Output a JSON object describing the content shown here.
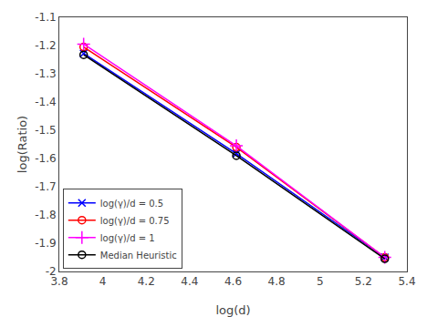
{
  "chart_data": {
    "type": "line",
    "xlabel": "log(d)",
    "ylabel": "log(Ratio)",
    "xlim": [
      3.8,
      5.4
    ],
    "ylim": [
      -2.0,
      -1.1
    ],
    "xticks": [
      3.8,
      4,
      4.2,
      4.4,
      4.6,
      4.8,
      5,
      5.2,
      5.4
    ],
    "yticks": [
      -2,
      -1.9,
      -1.8,
      -1.7,
      -1.6,
      -1.5,
      -1.4,
      -1.3,
      -1.2,
      -1.1
    ],
    "grid": false,
    "legend": "lower left",
    "series": [
      {
        "name": "log(γ)/d = 0.5",
        "color": "blue",
        "marker": "x",
        "x": [
          3.912,
          4.615,
          5.298
        ],
        "values": [
          -1.228,
          -1.583,
          -1.95
        ]
      },
      {
        "name": "log(γ)/d = 0.75",
        "color": "red",
        "marker": "circle-open",
        "x": [
          3.912,
          4.615,
          5.298
        ],
        "values": [
          -1.205,
          -1.56,
          -1.95
        ]
      },
      {
        "name": "log(γ)/d = 1",
        "color": "magenta",
        "marker": "plus",
        "x": [
          3.912,
          4.615,
          5.298
        ],
        "values": [
          -1.195,
          -1.555,
          -1.95
        ]
      },
      {
        "name": "Median Heuristic",
        "color": "black",
        "marker": "circle-open",
        "x": [
          3.912,
          4.615,
          5.298
        ],
        "values": [
          -1.233,
          -1.59,
          -1.955
        ]
      }
    ]
  }
}
